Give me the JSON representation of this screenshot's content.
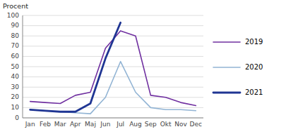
{
  "chart_data": {
    "type": "line",
    "ylabel": "Procent",
    "categories": [
      "Jan",
      "Feb",
      "Mar",
      "Apr",
      "Maj",
      "Jun",
      "Jul",
      "Aug",
      "Sep",
      "Okt",
      "Nov",
      "Dec"
    ],
    "series": [
      {
        "name": "2019",
        "color": "#7030a0",
        "values": [
          16,
          15,
          14,
          22,
          25,
          68,
          85,
          80,
          22,
          20,
          15,
          12
        ]
      },
      {
        "name": "2020",
        "color": "#92b4d4",
        "values": [
          8,
          7,
          6,
          5,
          4,
          20,
          55,
          25,
          10,
          8,
          8,
          7
        ]
      },
      {
        "name": "2021",
        "color": "#1f3593",
        "values": [
          8,
          7,
          6,
          6,
          14,
          58,
          93,
          null,
          null,
          null,
          null,
          null
        ]
      }
    ],
    "ylim": [
      0,
      100
    ],
    "yticks": [
      0,
      10,
      20,
      30,
      40,
      50,
      60,
      70,
      80,
      90,
      100
    ],
    "grid": true,
    "legend": "right"
  }
}
